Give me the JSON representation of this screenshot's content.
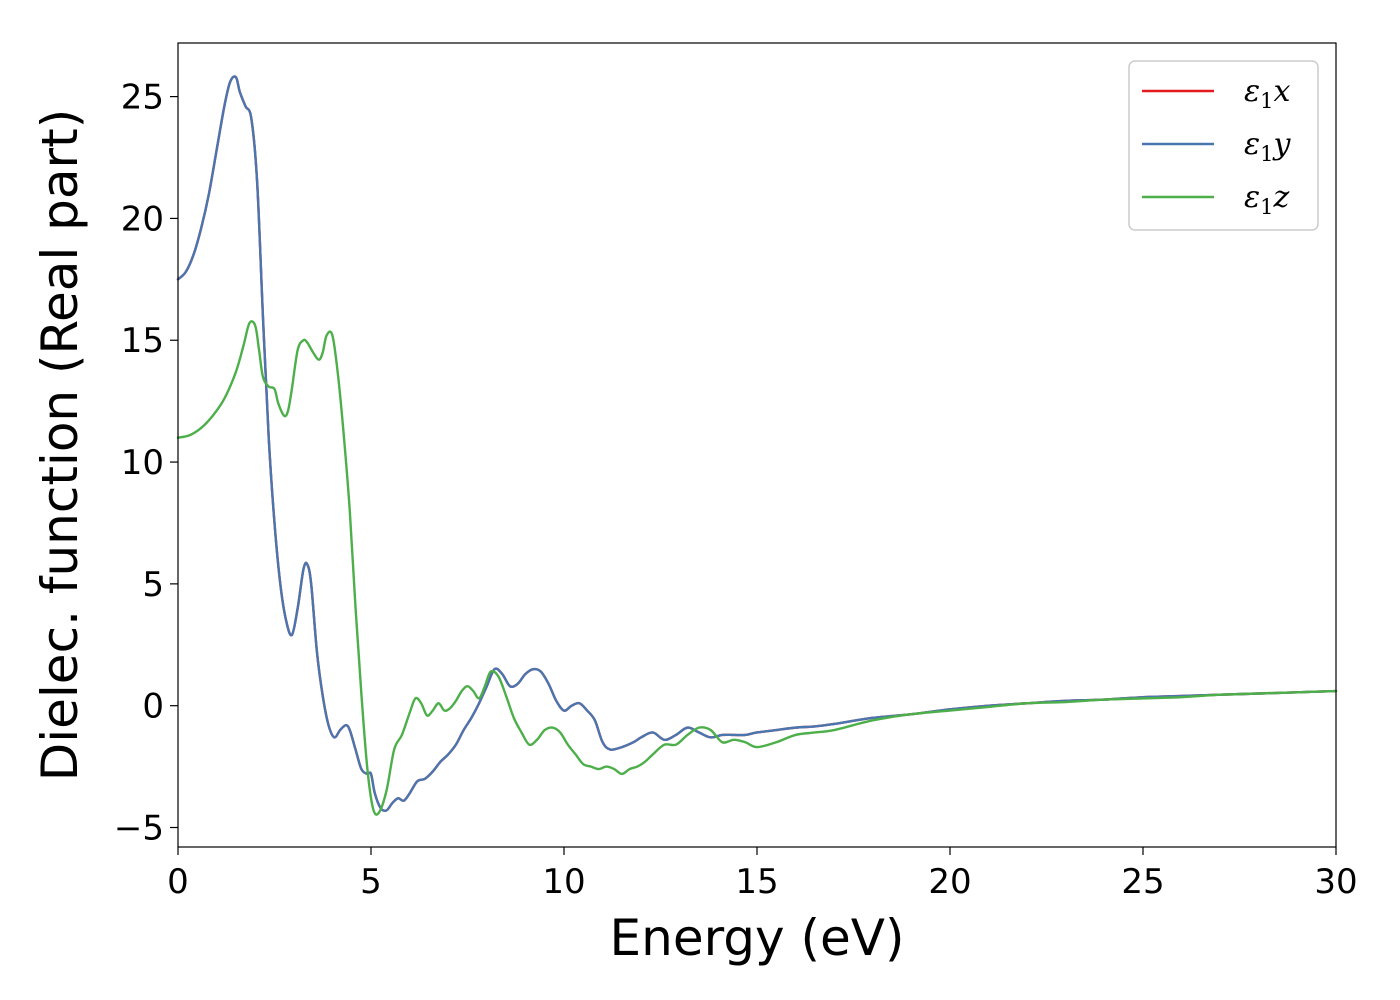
{
  "chart_data": {
    "type": "line",
    "xlabel": "Energy (eV)",
    "ylabel": "Dielec. function (Real part)",
    "xlim": [
      0,
      30
    ],
    "ylim": [
      -5.8,
      27.2
    ],
    "xticks": [
      0,
      5,
      10,
      15,
      20,
      25,
      30
    ],
    "xtick_labels": [
      "0",
      "5",
      "10",
      "15",
      "20",
      "25",
      "30"
    ],
    "yticks": [
      -5,
      0,
      5,
      10,
      15,
      20,
      25
    ],
    "ytick_labels": [
      "−5",
      "0",
      "5",
      "10",
      "15",
      "20",
      "25"
    ],
    "grid": false,
    "legend_position": "top-right",
    "series": [
      {
        "name": "ε₁x",
        "legend_main": "ε",
        "legend_sub": "1",
        "legend_tail": "x",
        "color": "#e41a1c",
        "x": [
          0,
          0.2,
          0.4,
          0.6,
          0.8,
          1.0,
          1.2,
          1.35,
          1.5,
          1.6,
          1.75,
          1.9,
          2.05,
          2.2,
          2.35,
          2.5,
          2.65,
          2.8,
          2.95,
          3.1,
          3.25,
          3.35,
          3.45,
          3.6,
          3.75,
          3.9,
          4.05,
          4.2,
          4.35,
          4.45,
          4.6,
          4.75,
          4.9,
          5.0,
          5.1,
          5.25,
          5.4,
          5.55,
          5.7,
          5.85,
          6.0,
          6.2,
          6.4,
          6.6,
          6.8,
          7.0,
          7.2,
          7.4,
          7.6,
          7.8,
          8.0,
          8.2,
          8.4,
          8.6,
          8.8,
          9.0,
          9.2,
          9.4,
          9.6,
          9.8,
          10.0,
          10.2,
          10.4,
          10.6,
          10.8,
          11.0,
          11.2,
          11.5,
          11.8,
          12.0,
          12.3,
          12.6,
          12.9,
          13.2,
          13.5,
          13.8,
          14.1,
          14.4,
          14.7,
          15.0,
          15.5,
          16.0,
          16.5,
          17.0,
          18.0,
          19.0,
          20.0,
          21.0,
          22.0,
          23.0,
          24.0,
          25.0,
          26.0,
          27.0,
          28.0,
          29.0,
          30.0
        ],
        "y": [
          17.5,
          17.8,
          18.5,
          19.6,
          21.0,
          22.8,
          24.6,
          25.6,
          25.8,
          25.2,
          24.6,
          24.1,
          21.5,
          16.0,
          11.0,
          7.5,
          5.0,
          3.5,
          2.9,
          4.0,
          5.6,
          5.8,
          5.0,
          2.2,
          0.4,
          -0.8,
          -1.3,
          -1.0,
          -0.8,
          -1.0,
          -1.8,
          -2.6,
          -2.8,
          -2.8,
          -3.6,
          -4.2,
          -4.3,
          -4.0,
          -3.8,
          -3.9,
          -3.6,
          -3.1,
          -3.0,
          -2.7,
          -2.3,
          -2.0,
          -1.6,
          -1.0,
          -0.5,
          0.1,
          0.8,
          1.5,
          1.3,
          0.8,
          0.9,
          1.3,
          1.5,
          1.4,
          0.9,
          0.2,
          -0.2,
          0.0,
          0.1,
          -0.2,
          -0.6,
          -1.5,
          -1.8,
          -1.7,
          -1.5,
          -1.3,
          -1.1,
          -1.4,
          -1.2,
          -0.9,
          -1.1,
          -1.3,
          -1.2,
          -1.2,
          -1.2,
          -1.1,
          -1.0,
          -0.9,
          -0.85,
          -0.75,
          -0.5,
          -0.35,
          -0.15,
          0.0,
          0.1,
          0.2,
          0.25,
          0.35,
          0.4,
          0.45,
          0.5,
          0.55,
          0.6
        ]
      },
      {
        "name": "ε₁y",
        "legend_main": "ε",
        "legend_sub": "1",
        "legend_tail": "y",
        "color": "#4a76b0",
        "x": [
          0,
          0.2,
          0.4,
          0.6,
          0.8,
          1.0,
          1.2,
          1.35,
          1.5,
          1.6,
          1.75,
          1.9,
          2.05,
          2.2,
          2.35,
          2.5,
          2.65,
          2.8,
          2.95,
          3.1,
          3.25,
          3.35,
          3.45,
          3.6,
          3.75,
          3.9,
          4.05,
          4.2,
          4.35,
          4.45,
          4.6,
          4.75,
          4.9,
          5.0,
          5.1,
          5.25,
          5.4,
          5.55,
          5.7,
          5.85,
          6.0,
          6.2,
          6.4,
          6.6,
          6.8,
          7.0,
          7.2,
          7.4,
          7.6,
          7.8,
          8.0,
          8.2,
          8.4,
          8.6,
          8.8,
          9.0,
          9.2,
          9.4,
          9.6,
          9.8,
          10.0,
          10.2,
          10.4,
          10.6,
          10.8,
          11.0,
          11.2,
          11.5,
          11.8,
          12.0,
          12.3,
          12.6,
          12.9,
          13.2,
          13.5,
          13.8,
          14.1,
          14.4,
          14.7,
          15.0,
          15.5,
          16.0,
          16.5,
          17.0,
          18.0,
          19.0,
          20.0,
          21.0,
          22.0,
          23.0,
          24.0,
          25.0,
          26.0,
          27.0,
          28.0,
          29.0,
          30.0
        ],
        "y": [
          17.5,
          17.8,
          18.5,
          19.6,
          21.0,
          22.8,
          24.6,
          25.6,
          25.8,
          25.2,
          24.6,
          24.1,
          21.5,
          16.0,
          11.0,
          7.5,
          5.0,
          3.5,
          2.9,
          4.0,
          5.6,
          5.8,
          5.0,
          2.2,
          0.4,
          -0.8,
          -1.3,
          -1.0,
          -0.8,
          -1.0,
          -1.8,
          -2.6,
          -2.8,
          -2.8,
          -3.6,
          -4.2,
          -4.3,
          -4.0,
          -3.8,
          -3.9,
          -3.6,
          -3.1,
          -3.0,
          -2.7,
          -2.3,
          -2.0,
          -1.6,
          -1.0,
          -0.5,
          0.1,
          0.8,
          1.5,
          1.3,
          0.8,
          0.9,
          1.3,
          1.5,
          1.4,
          0.9,
          0.2,
          -0.2,
          0.0,
          0.1,
          -0.2,
          -0.6,
          -1.5,
          -1.8,
          -1.7,
          -1.5,
          -1.3,
          -1.1,
          -1.4,
          -1.2,
          -0.9,
          -1.1,
          -1.3,
          -1.2,
          -1.2,
          -1.2,
          -1.1,
          -1.0,
          -0.9,
          -0.85,
          -0.75,
          -0.5,
          -0.35,
          -0.15,
          0.0,
          0.1,
          0.2,
          0.25,
          0.35,
          0.4,
          0.45,
          0.5,
          0.55,
          0.6
        ]
      },
      {
        "name": "ε₁z",
        "legend_main": "ε",
        "legend_sub": "1",
        "legend_tail": "z",
        "color": "#4daf4a",
        "x": [
          0,
          0.3,
          0.6,
          0.9,
          1.2,
          1.5,
          1.7,
          1.85,
          2.0,
          2.1,
          2.2,
          2.35,
          2.5,
          2.6,
          2.75,
          2.85,
          2.95,
          3.1,
          3.25,
          3.35,
          3.5,
          3.65,
          3.75,
          3.85,
          4.0,
          4.15,
          4.3,
          4.45,
          4.6,
          4.75,
          4.9,
          5.05,
          5.2,
          5.4,
          5.6,
          5.8,
          6.0,
          6.15,
          6.3,
          6.45,
          6.6,
          6.75,
          6.9,
          7.05,
          7.2,
          7.35,
          7.5,
          7.65,
          7.8,
          7.95,
          8.1,
          8.3,
          8.5,
          8.7,
          8.9,
          9.1,
          9.3,
          9.5,
          9.7,
          9.9,
          10.1,
          10.3,
          10.5,
          10.7,
          10.9,
          11.1,
          11.3,
          11.5,
          11.7,
          11.9,
          12.1,
          12.3,
          12.6,
          12.9,
          13.2,
          13.5,
          13.8,
          14.1,
          14.4,
          14.7,
          15.0,
          15.5,
          16.0,
          16.5,
          17.0,
          18.0,
          19.0,
          20.0,
          21.0,
          22.0,
          23.0,
          24.0,
          25.0,
          26.0,
          27.0,
          28.0,
          29.0,
          30.0
        ],
        "y": [
          11.0,
          11.1,
          11.4,
          11.9,
          12.6,
          13.7,
          14.8,
          15.7,
          15.6,
          14.6,
          13.5,
          13.1,
          13.0,
          12.4,
          11.9,
          12.1,
          13.0,
          14.6,
          15.0,
          14.9,
          14.5,
          14.2,
          14.5,
          15.2,
          15.2,
          13.5,
          11.0,
          8.0,
          4.0,
          0.5,
          -2.5,
          -4.2,
          -4.4,
          -3.5,
          -1.8,
          -1.2,
          -0.3,
          0.3,
          0.1,
          -0.4,
          -0.2,
          0.1,
          -0.2,
          -0.1,
          0.2,
          0.6,
          0.8,
          0.6,
          0.3,
          0.8,
          1.4,
          1.2,
          0.4,
          -0.5,
          -1.1,
          -1.6,
          -1.4,
          -1.0,
          -0.9,
          -1.1,
          -1.6,
          -2.0,
          -2.4,
          -2.5,
          -2.6,
          -2.5,
          -2.6,
          -2.8,
          -2.6,
          -2.5,
          -2.3,
          -2.0,
          -1.6,
          -1.6,
          -1.2,
          -0.9,
          -1.0,
          -1.5,
          -1.4,
          -1.5,
          -1.7,
          -1.5,
          -1.2,
          -1.1,
          -1.0,
          -0.6,
          -0.35,
          -0.2,
          -0.05,
          0.1,
          0.15,
          0.25,
          0.3,
          0.35,
          0.45,
          0.5,
          0.55,
          0.6
        ]
      }
    ]
  }
}
